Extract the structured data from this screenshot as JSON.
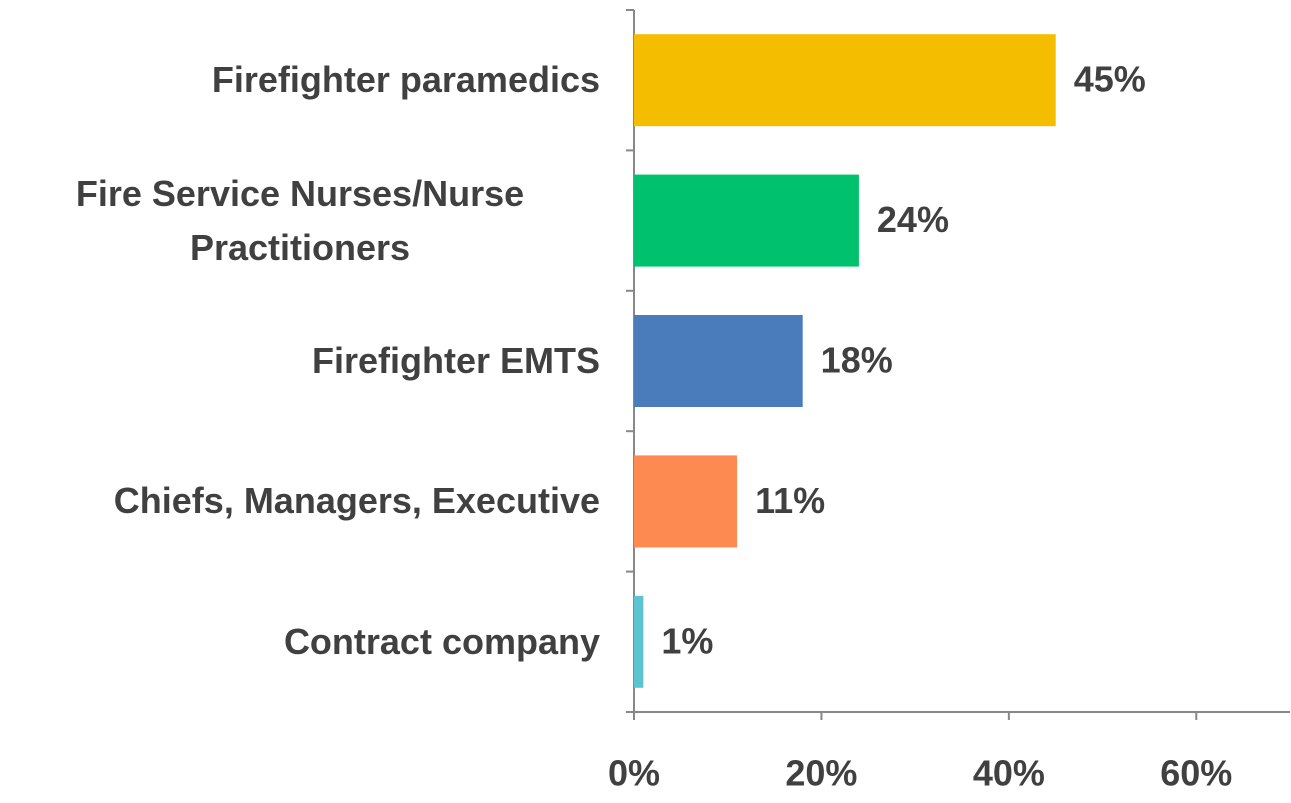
{
  "chart_data": {
    "type": "bar",
    "orientation": "horizontal",
    "categories": [
      "Firefighter paramedics",
      "Fire Service Nurses/Nurse Practitioners",
      "Firefighter EMTS",
      "Chiefs, Managers, Executive",
      "Contract company"
    ],
    "values": [
      45,
      24,
      18,
      11,
      1
    ],
    "value_labels": [
      "45%",
      "24%",
      "18%",
      "11%",
      "1%"
    ],
    "colors": [
      "#f5bd00",
      "#00c26e",
      "#4a7bbb",
      "#fd8a50",
      "#5bc4d0"
    ],
    "xlim": [
      0,
      70
    ],
    "xticks": [
      {
        "value": 0,
        "label": "0%"
      },
      {
        "value": 20,
        "label": "20%"
      },
      {
        "value": 40,
        "label": "40%"
      },
      {
        "value": 60,
        "label": "60%"
      }
    ],
    "grid": false
  }
}
